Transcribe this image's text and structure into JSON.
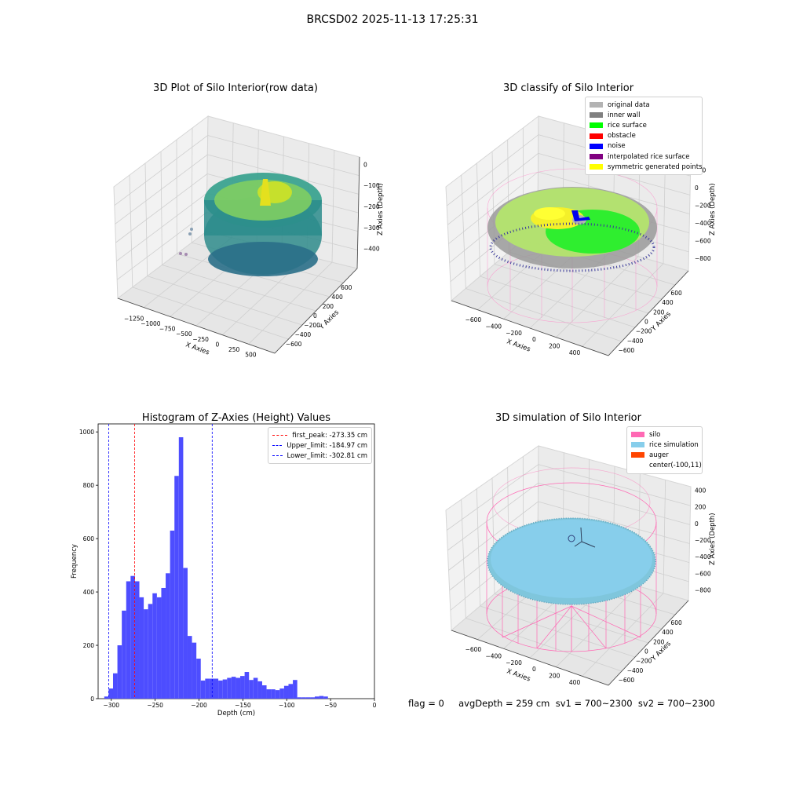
{
  "suptitle": "BRCSD02 2025-11-13 17:25:31",
  "panels": {
    "raw": {
      "title": "3D Plot of Silo Interior(row data)",
      "xlabel": "X Axies",
      "ylabel": "Y Axies",
      "zlabel": "Z Axies (Depth)",
      "xticks": [
        "−1250",
        "−1000",
        "−750",
        "−500",
        "−250",
        "0",
        "250",
        "500"
      ],
      "yticks": [
        "−600",
        "−400",
        "−200",
        "0",
        "200",
        "400",
        "600"
      ],
      "zticks": [
        "0",
        "−100",
        "−200",
        "−300",
        "−400"
      ]
    },
    "classify": {
      "title": "3D classify of Silo Interior",
      "xlabel": "X Axies",
      "ylabel": "Y Axies",
      "zlabel": "Z Axies (Depth)",
      "xticks": [
        "−600",
        "−400",
        "−200",
        "0",
        "200",
        "400"
      ],
      "yticks": [
        "−600",
        "−400",
        "−200",
        "0",
        "200",
        "400",
        "600"
      ],
      "zticks": [
        "200",
        "0",
        "−200",
        "−400",
        "−600",
        "−800"
      ],
      "legend": [
        {
          "label": "original data",
          "color": "#b3b3b3"
        },
        {
          "label": "inner wall",
          "color": "#808080"
        },
        {
          "label": "rice surface",
          "color": "#00ff00"
        },
        {
          "label": "obstacle",
          "color": "#ff0000"
        },
        {
          "label": "noise",
          "color": "#0000ff"
        },
        {
          "label": "interpolated rice surface",
          "color": "#800080"
        },
        {
          "label": "symmetric generated points",
          "color": "#ffff00"
        }
      ]
    },
    "simulation": {
      "title": "3D simulation of Silo Interior",
      "xlabel": "X Axies",
      "ylabel": "Y Axies",
      "zlabel": "Z Axies (Depth)",
      "xticks": [
        "−600",
        "−400",
        "−200",
        "0",
        "200",
        "400"
      ],
      "yticks": [
        "−600",
        "−400",
        "−200",
        "0",
        "200",
        "400",
        "600"
      ],
      "zticks": [
        "400",
        "200",
        "0",
        "−200",
        "−400",
        "−600",
        "−800"
      ],
      "legend": [
        {
          "label": "silo",
          "color": "#ff69b4"
        },
        {
          "label": "rice simulation",
          "color": "#87ceeb"
        },
        {
          "label": "auger",
          "color": "#ff4500"
        },
        {
          "label": "center(-100,11)",
          "color": ""
        }
      ]
    }
  },
  "chart_data": {
    "type": "bar",
    "title": "Histogram of Z-Axies (Height) Values",
    "xlabel": "Depth (cm)",
    "ylabel": "Frequency",
    "xlim": [
      -315,
      0
    ],
    "ylim": [
      0,
      1030
    ],
    "xticks": [
      -300,
      -250,
      -200,
      -150,
      -100,
      -50,
      0
    ],
    "xtick_labels": [
      "−300",
      "−250",
      "−200",
      "−150",
      "−100",
      "−50",
      "0"
    ],
    "yticks": [
      0,
      200,
      400,
      600,
      800,
      1000
    ],
    "bin_start": -308,
    "bin_width": 5,
    "values": [
      8,
      38,
      95,
      200,
      330,
      440,
      460,
      440,
      380,
      335,
      355,
      395,
      380,
      415,
      470,
      630,
      835,
      980,
      490,
      235,
      210,
      150,
      68,
      75,
      75,
      75,
      68,
      72,
      78,
      82,
      78,
      85,
      100,
      70,
      78,
      65,
      50,
      35,
      35,
      32,
      38,
      48,
      55,
      70,
      5,
      5,
      5,
      5,
      8,
      10,
      8
    ],
    "bar_color": "#4d4dff",
    "vlines": [
      {
        "label": "first_peak: -273.35 cm",
        "x": -273.35,
        "color": "#ff0000"
      },
      {
        "label": "Upper_limit: -184.97 cm",
        "x": -184.97,
        "color": "#0000ff"
      },
      {
        "label": "Lower_limit: -302.81 cm",
        "x": -302.81,
        "color": "#0000ff"
      }
    ],
    "legend_loc": "upper right"
  },
  "status": {
    "text": "flag = 0     avgDepth = 259 cm  sv1 = 700~2300  sv2 = 700~2300"
  }
}
